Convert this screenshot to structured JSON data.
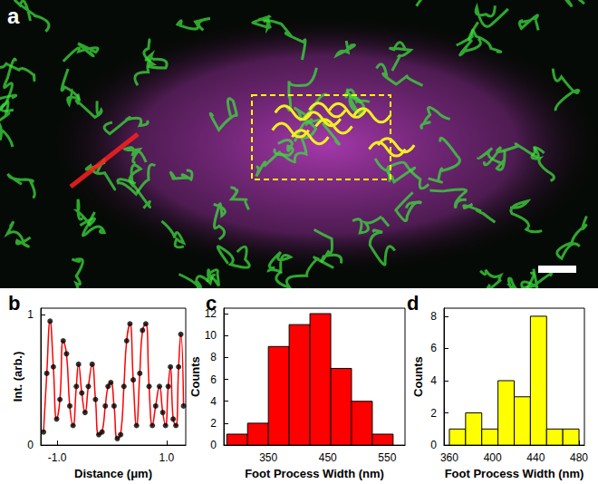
{
  "panel_a": {
    "label": "a"
  },
  "chart_data": [
    {
      "type": "line",
      "title": "b",
      "xlabel": "Distance (μm)",
      "ylabel": "Int. (arb.)",
      "x": [
        -1.25,
        -1.19,
        -1.13,
        -1.07,
        -1.01,
        -0.95,
        -0.89,
        -0.83,
        -0.77,
        -0.71,
        -0.65,
        -0.61,
        -0.55,
        -0.49,
        -0.43,
        -0.36,
        -0.3,
        -0.24,
        -0.18,
        -0.12,
        -0.07,
        -0.02,
        0.04,
        0.1,
        0.16,
        0.22,
        0.27,
        0.33,
        0.39,
        0.45,
        0.51,
        0.56,
        0.62,
        0.68,
        0.74,
        0.8,
        0.87,
        0.93,
        0.98,
        1.03,
        1.07,
        1.12,
        1.17,
        1.22,
        1.26,
        1.31
      ],
      "series": [
        {
          "type": "scatter",
          "color": "#000000",
          "marker": "circle",
          "values": [
            0.1,
            0.55,
            0.95,
            0.6,
            0.2,
            0.35,
            0.8,
            0.7,
            0.3,
            0.15,
            0.45,
            0.62,
            0.4,
            0.25,
            0.45,
            0.62,
            0.35,
            0.08,
            0.1,
            0.3,
            0.45,
            0.48,
            0.3,
            0.05,
            0.08,
            0.45,
            0.8,
            0.93,
            0.5,
            0.15,
            0.55,
            0.88,
            0.93,
            0.45,
            0.15,
            0.3,
            0.45,
            0.25,
            0.15,
            0.45,
            0.6,
            0.2,
            0.15,
            0.6,
            0.85,
            0.3
          ]
        },
        {
          "type": "line",
          "color": "#ff0000",
          "line_style": "solid",
          "values": [
            0.1,
            0.55,
            0.95,
            0.6,
            0.2,
            0.35,
            0.8,
            0.7,
            0.3,
            0.15,
            0.45,
            0.62,
            0.4,
            0.25,
            0.45,
            0.62,
            0.35,
            0.08,
            0.1,
            0.3,
            0.45,
            0.48,
            0.3,
            0.05,
            0.08,
            0.45,
            0.8,
            0.93,
            0.5,
            0.15,
            0.55,
            0.88,
            0.93,
            0.45,
            0.15,
            0.3,
            0.45,
            0.25,
            0.15,
            0.45,
            0.6,
            0.2,
            0.15,
            0.6,
            0.85,
            0.3
          ]
        }
      ],
      "xlim": [
        -1.3,
        1.35
      ],
      "xticks": [
        {
          "value": -1,
          "label": "-1.0"
        },
        {
          "value": 1,
          "label": "1.0"
        }
      ],
      "ylim": [
        0,
        1.05
      ],
      "yticks": [
        0,
        1
      ],
      "grid": false
    },
    {
      "type": "histogram",
      "title": "c",
      "xlabel": "Foot Process Width (nm)",
      "ylabel": "Counts",
      "bins": [
        280,
        315,
        350,
        385,
        420,
        455,
        490,
        525,
        560
      ],
      "values": [
        1,
        2,
        9,
        11,
        12,
        7,
        4,
        1
      ],
      "color": "#ff0000",
      "xlim": [
        275,
        580
      ],
      "xticks": [
        350,
        450,
        550
      ],
      "ylim": [
        0,
        12.5
      ],
      "yticks": [
        0,
        2,
        4,
        6,
        8,
        10,
        12
      ],
      "grid": false
    },
    {
      "type": "histogram",
      "title": "d",
      "xlabel": "Foot Process Width (nm)",
      "ylabel": "Counts",
      "bins": [
        360,
        375,
        390,
        405,
        420,
        435,
        450,
        465,
        480
      ],
      "values": [
        1,
        2,
        1,
        4,
        3,
        8,
        1,
        1
      ],
      "color": "#ffff00",
      "xlim": [
        355,
        485
      ],
      "xticks": [
        360,
        400,
        440,
        480
      ],
      "ylim": [
        0,
        8.5
      ],
      "yticks": [
        0,
        2,
        4,
        6,
        8
      ],
      "grid": false
    }
  ]
}
